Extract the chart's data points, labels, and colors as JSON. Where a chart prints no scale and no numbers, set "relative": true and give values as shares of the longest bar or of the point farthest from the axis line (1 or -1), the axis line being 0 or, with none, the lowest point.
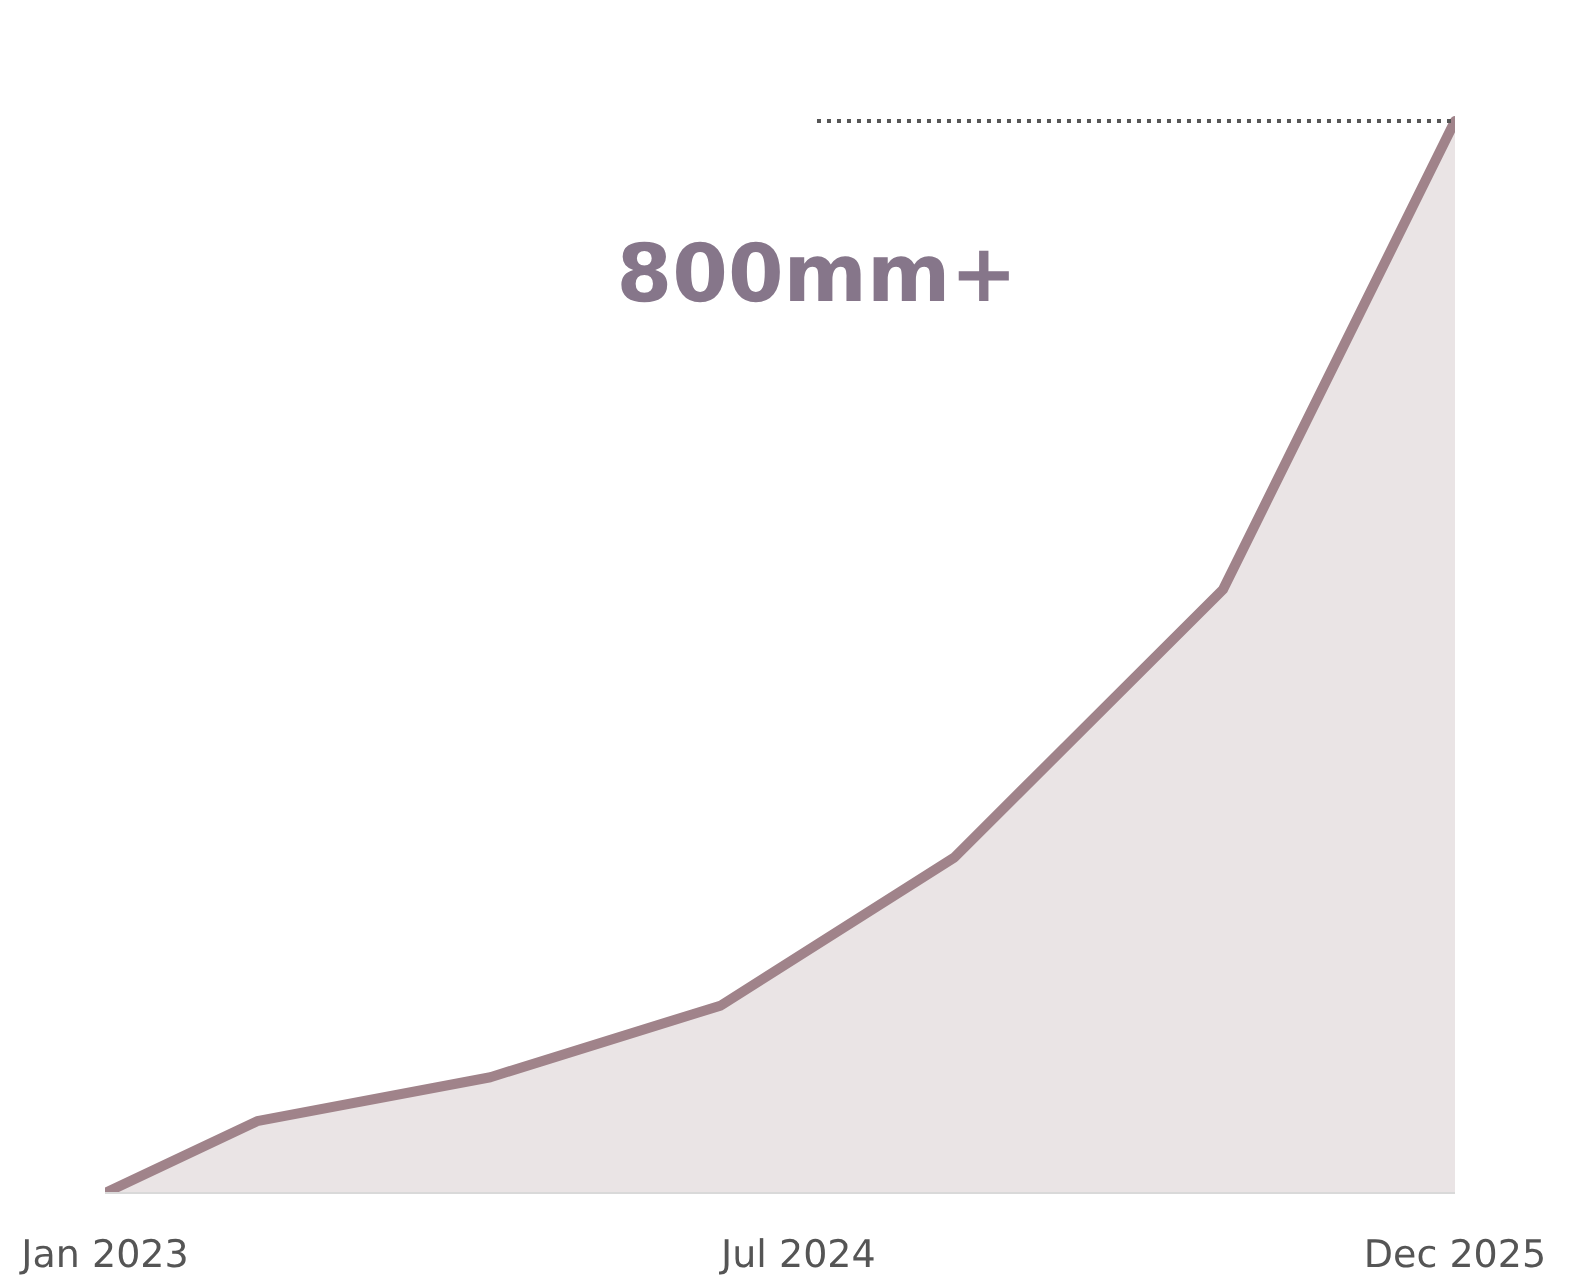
{
  "chart_data": {
    "type": "area",
    "relative": true,
    "x": [
      "2023-01",
      "2023-05",
      "2023-11",
      "2024-05",
      "2024-11",
      "2025-06",
      "2025-12"
    ],
    "series": [
      {
        "color": "#a0838a",
        "values": [
          0,
          0.067,
          0.108,
          0.175,
          0.313,
          0.563,
          1
        ]
      }
    ],
    "xlim": [
      "2023-01",
      "2025-12"
    ],
    "xticks": [
      {
        "value": "2023-01",
        "label": "Jan 2023"
      },
      {
        "value": "2024-07",
        "label": "Jul 2024"
      },
      {
        "value": "2025-12",
        "label": "Dec 2025"
      }
    ],
    "annotations": [
      "800mm+"
    ],
    "grid": false
  }
}
